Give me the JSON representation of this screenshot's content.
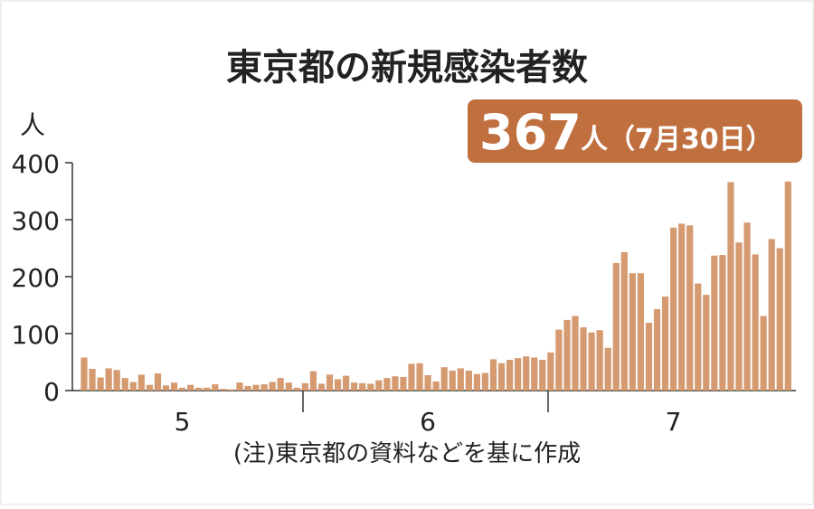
{
  "chart_data": {
    "type": "bar",
    "title": "東京都の新規感染者数",
    "y_label": "人",
    "annotation": {
      "value": "367",
      "text": "人（7月30日）"
    },
    "note": "(注)東京都の資料などを基に作成",
    "categories": [
      null,
      null,
      null,
      null,
      null,
      null,
      null,
      null,
      null,
      null,
      null,
      null,
      "5",
      null,
      null,
      null,
      null,
      null,
      null,
      null,
      null,
      null,
      null,
      null,
      null,
      null,
      null,
      null,
      null,
      null,
      null,
      null,
      null,
      null,
      null,
      null,
      null,
      null,
      null,
      null,
      null,
      null,
      "6",
      null,
      null,
      null,
      null,
      null,
      null,
      null,
      null,
      null,
      null,
      null,
      null,
      null,
      null,
      null,
      null,
      null,
      null,
      null,
      null,
      null,
      null,
      null,
      null,
      null,
      null,
      null,
      null,
      null,
      "7",
      null,
      null,
      null,
      null,
      null,
      null,
      null,
      null,
      null,
      null,
      null,
      null,
      null,
      null
    ],
    "values": [
      58,
      38,
      23,
      39,
      36,
      22,
      15,
      28,
      10,
      30,
      9,
      14,
      5,
      10,
      5,
      5,
      11,
      3,
      2,
      14,
      8,
      10,
      11,
      15,
      22,
      14,
      5,
      13,
      34,
      12,
      28,
      20,
      26,
      14,
      13,
      12,
      18,
      22,
      25,
      24,
      47,
      48,
      27,
      16,
      41,
      35,
      39,
      35,
      29,
      31,
      55,
      48,
      54,
      57,
      60,
      58,
      54,
      67,
      107,
      124,
      131,
      111,
      102,
      106,
      75,
      224,
      243,
      206,
      206,
      119,
      143,
      165,
      286,
      293,
      290,
      188,
      168,
      237,
      238,
      366,
      260,
      295,
      239,
      131,
      266,
      250,
      367
    ],
    "color": "#d69a70",
    "ylim": [
      0,
      400
    ],
    "yticks": [
      0,
      100,
      200,
      300,
      400
    ]
  }
}
